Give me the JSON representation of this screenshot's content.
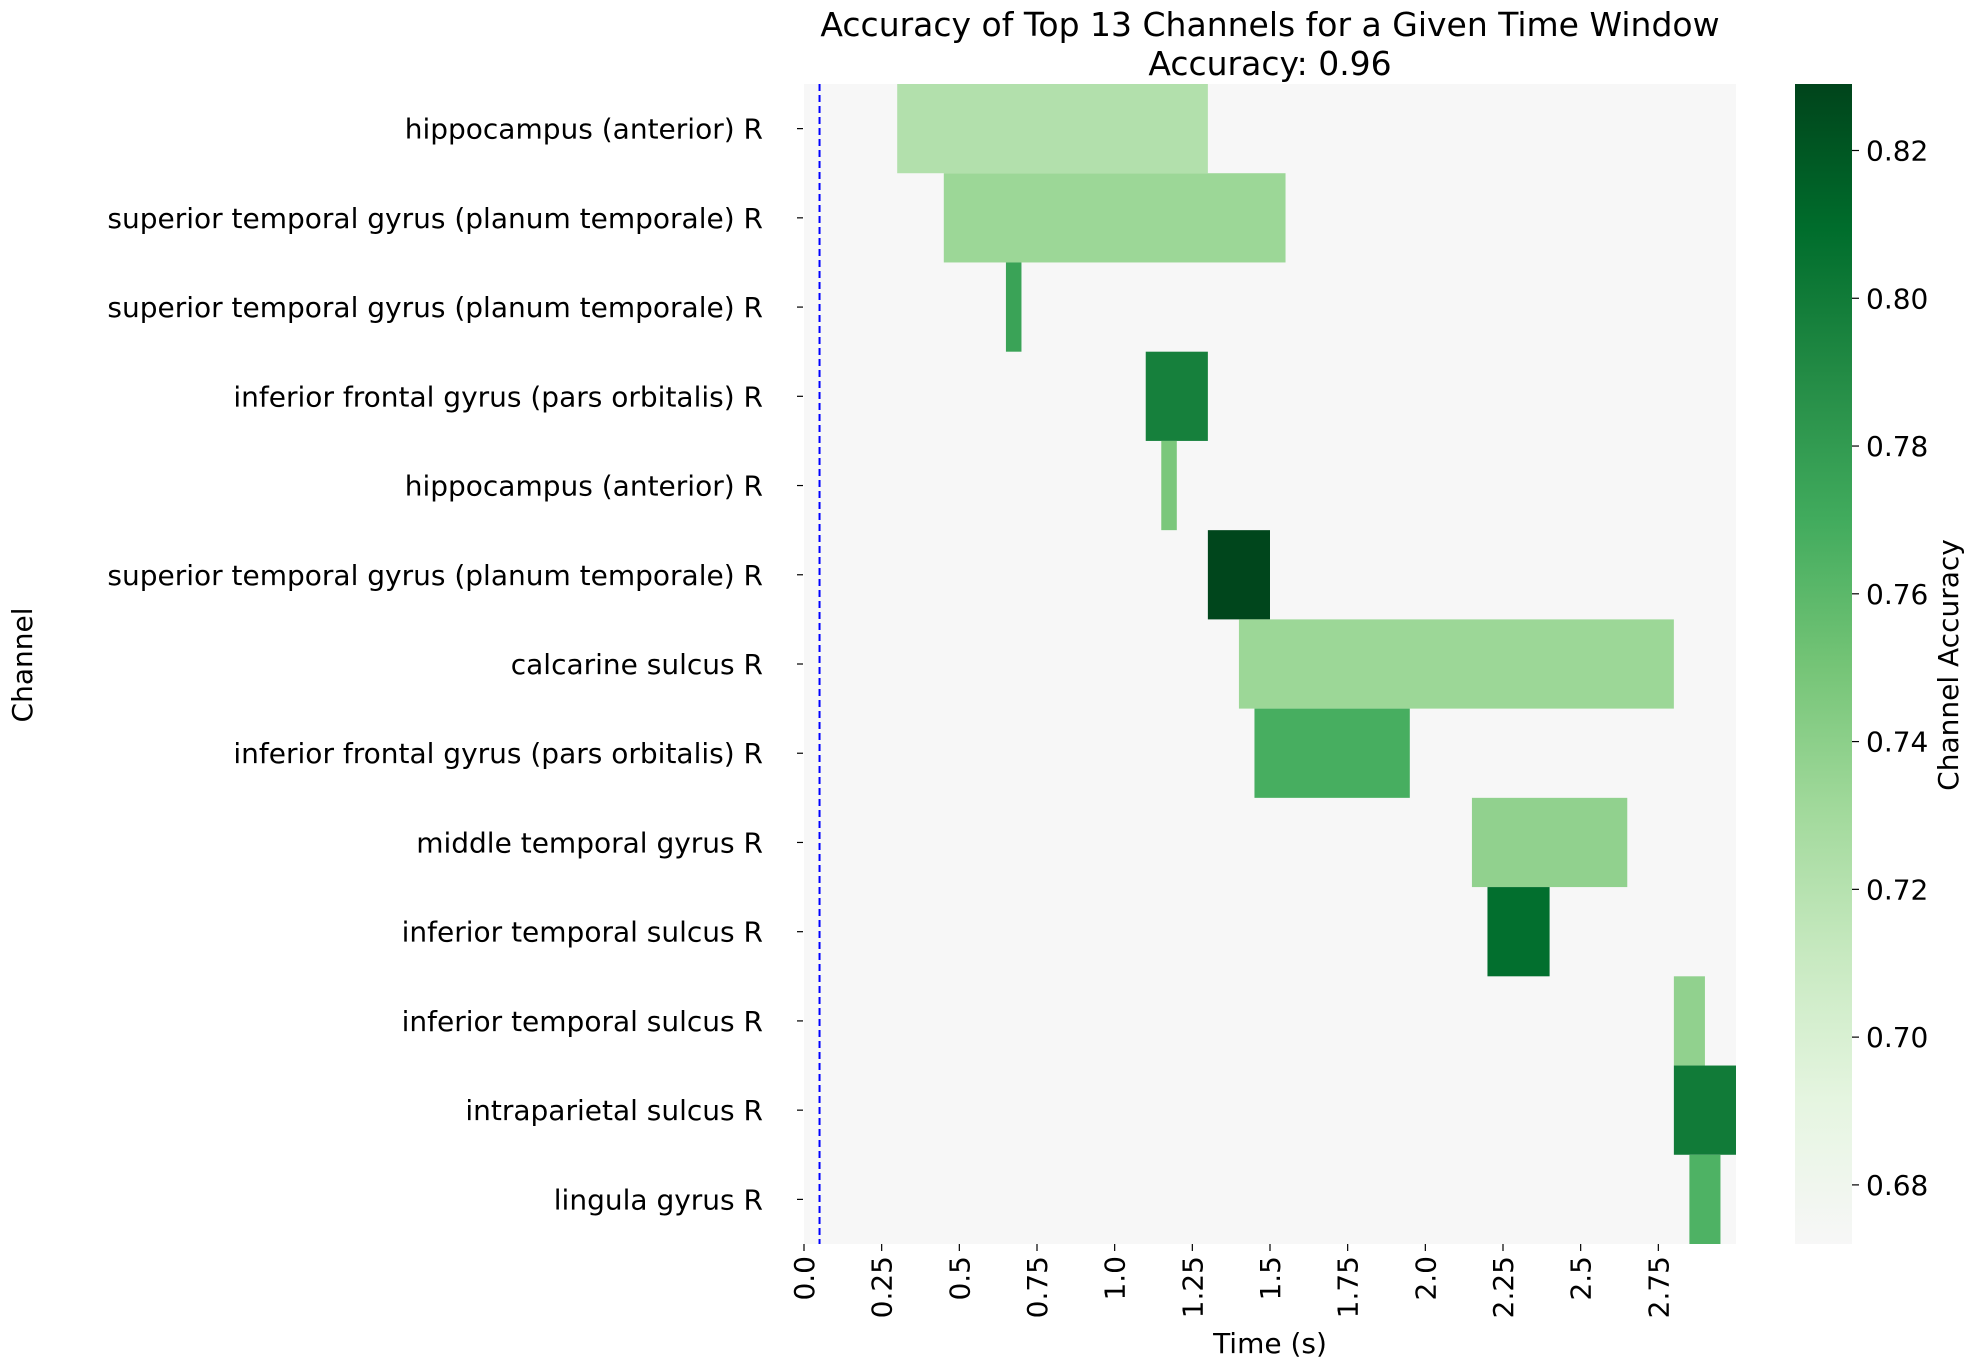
{
  "chart_data": {
    "type": "heatmap",
    "title": "Accuracy of Top 13 Channels for a Given Time Window",
    "subtitle": "Accuracy: 0.96",
    "xlabel": "Time (s)",
    "ylabel": "Channel",
    "xlim": [
      0.0,
      3.0
    ],
    "x_ticks": [
      0.0,
      0.25,
      0.5,
      0.75,
      1.0,
      1.25,
      1.5,
      1.75,
      2.0,
      2.25,
      2.5,
      2.75
    ],
    "x_tick_labels": [
      "0.0",
      "0.25",
      "0.5",
      "0.75",
      "1.0",
      "1.25",
      "1.5",
      "1.75",
      "2.0",
      "2.25",
      "2.5",
      "2.75"
    ],
    "channels": [
      "hippocampus (anterior) R",
      "superior temporal gyrus (planum temporale) R",
      "superior temporal gyrus (planum temporale) R",
      "inferior frontal gyrus (pars orbitalis) R",
      "hippocampus (anterior) R",
      "superior temporal gyrus (planum temporale) R",
      "calcarine sulcus R",
      "inferior frontal gyrus (pars orbitalis) R",
      "middle temporal gyrus R",
      "inferior temporal sulcus R",
      "inferior temporal sulcus R",
      "intraparietal sulcus R",
      "lingula gyrus R"
    ],
    "windows": [
      {
        "row": 0,
        "start": 0.3,
        "end": 1.3,
        "accuracy": 0.722
      },
      {
        "row": 1,
        "start": 0.45,
        "end": 1.55,
        "accuracy": 0.733
      },
      {
        "row": 2,
        "start": 0.65,
        "end": 0.7,
        "accuracy": 0.775
      },
      {
        "row": 3,
        "start": 1.1,
        "end": 1.3,
        "accuracy": 0.797
      },
      {
        "row": 4,
        "start": 1.15,
        "end": 1.2,
        "accuracy": 0.748
      },
      {
        "row": 5,
        "start": 1.3,
        "end": 1.5,
        "accuracy": 0.828
      },
      {
        "row": 6,
        "start": 1.4,
        "end": 2.8,
        "accuracy": 0.733
      },
      {
        "row": 7,
        "start": 1.45,
        "end": 1.95,
        "accuracy": 0.768
      },
      {
        "row": 8,
        "start": 2.15,
        "end": 2.65,
        "accuracy": 0.738
      },
      {
        "row": 9,
        "start": 2.2,
        "end": 2.4,
        "accuracy": 0.808
      },
      {
        "row": 10,
        "start": 2.8,
        "end": 2.9,
        "accuracy": 0.738
      },
      {
        "row": 11,
        "start": 2.8,
        "end": 3.0,
        "accuracy": 0.8
      },
      {
        "row": 12,
        "start": 2.85,
        "end": 2.95,
        "accuracy": 0.765
      }
    ],
    "reference_line": {
      "x": 0.05,
      "style": "dashed",
      "color": "#0000ff"
    },
    "colorbar": {
      "label": "Channel Accuracy",
      "range": [
        0.672,
        0.829
      ],
      "ticks": [
        0.68,
        0.7,
        0.72,
        0.74,
        0.76,
        0.78,
        0.8,
        0.82
      ],
      "tick_labels": [
        "0.68",
        "0.70",
        "0.72",
        "0.74",
        "0.76",
        "0.78",
        "0.80",
        "0.82"
      ],
      "colormap": "Greens",
      "colors": [
        "#f7f7f7",
        "#e5f5e0",
        "#c7e9c0",
        "#a1d99b",
        "#74c476",
        "#41ab5d",
        "#238b45",
        "#006d2c",
        "#00441b"
      ]
    },
    "background_color": "#f7f7f7",
    "grid": false
  }
}
